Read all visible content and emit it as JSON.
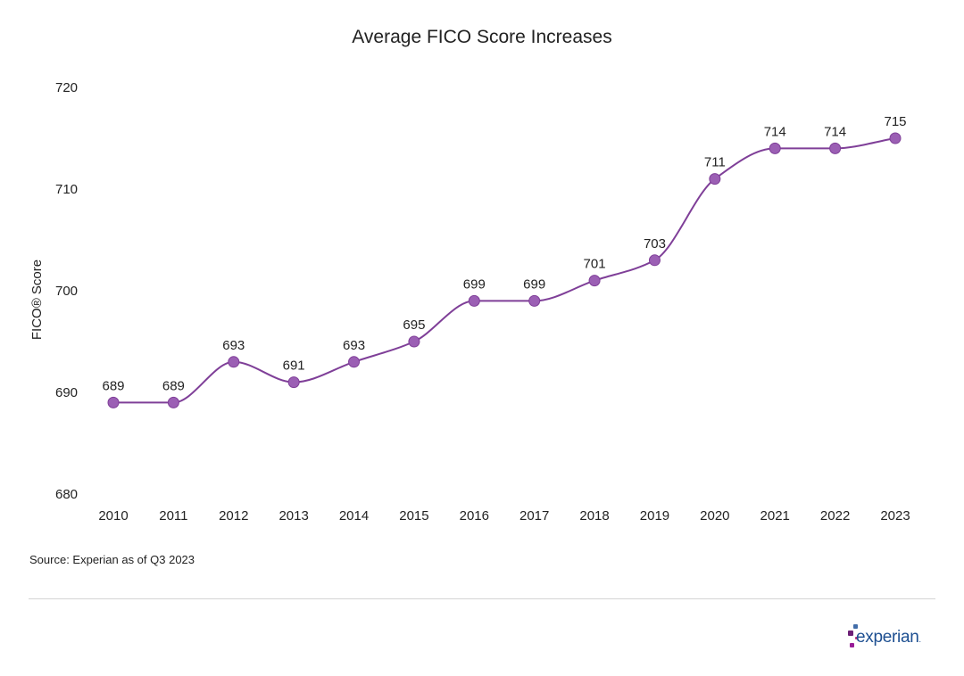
{
  "chart_data": {
    "type": "line",
    "title": "Average FICO Score Increases",
    "xlabel": "",
    "ylabel": "FICO® Score",
    "categories": [
      "2010",
      "2011",
      "2012",
      "2013",
      "2014",
      "2015",
      "2016",
      "2017",
      "2018",
      "2019",
      "2020",
      "2021",
      "2022",
      "2023"
    ],
    "values": [
      689,
      689,
      693,
      691,
      693,
      695,
      699,
      699,
      701,
      703,
      711,
      714,
      714,
      715
    ],
    "data_labels": [
      "689",
      "689",
      "693",
      "691",
      "693",
      "695",
      "699",
      "699",
      "701",
      "703",
      "711",
      "714",
      "714",
      "715"
    ],
    "ylim": [
      680,
      720
    ],
    "yticks": [
      680,
      690,
      700,
      710,
      720
    ],
    "grid": false,
    "legend": "none",
    "series_color": "#7f3f98",
    "marker_color": "#9b5fb4"
  },
  "source": "Source: Experian as of Q3 2023",
  "brand": {
    "name": "experian",
    "trademark": ".",
    "text_color": "#1d4f91",
    "dot_colors": [
      "#426da9",
      "#6d2077",
      "#ba2f7d",
      "#981d97"
    ]
  }
}
